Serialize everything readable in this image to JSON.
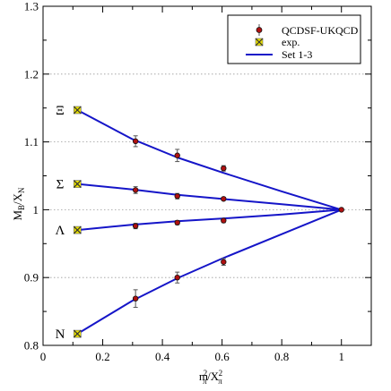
{
  "chart_data": {
    "type": "scatter",
    "xlim": [
      0,
      1.1
    ],
    "ylim": [
      0.8,
      1.3
    ],
    "x_ticks": [
      "0",
      "0.2",
      "0.4",
      "0.6",
      "0.8",
      "1"
    ],
    "y_ticks": [
      "0.8",
      "0.9",
      "1",
      "1.1",
      "1.2",
      "1.3"
    ],
    "grid": "horizontal dotted at y ticks",
    "legend_position": "top-right",
    "legend": [
      "QCDSF-UKQCD",
      "exp.",
      "Set 1-3"
    ],
    "baryon_labels": [
      {
        "text": "Ξ",
        "y": 1.147
      },
      {
        "text": "Σ",
        "y": 1.038
      },
      {
        "text": "Λ",
        "y": 0.97
      },
      {
        "text": "N",
        "y": 0.817
      }
    ],
    "series": [
      {
        "name": "QCDSF-UKQCD",
        "color": "#8b0000",
        "points": [
          {
            "x": 0.31,
            "y": 1.101,
            "err": 0.008
          },
          {
            "x": 0.45,
            "y": 1.08,
            "err": 0.009
          },
          {
            "x": 0.605,
            "y": 1.061,
            "err": 0.004
          },
          {
            "x": 0.31,
            "y": 1.029,
            "err": 0.005
          },
          {
            "x": 0.45,
            "y": 1.02,
            "err": 0.004
          },
          {
            "x": 0.605,
            "y": 1.016,
            "err": 0.002
          },
          {
            "x": 0.31,
            "y": 0.976,
            "err": 0.004
          },
          {
            "x": 0.45,
            "y": 0.981,
            "err": 0.003
          },
          {
            "x": 0.605,
            "y": 0.984,
            "err": 0.003
          },
          {
            "x": 0.31,
            "y": 0.869,
            "err": 0.013
          },
          {
            "x": 0.45,
            "y": 0.9,
            "err": 0.008
          },
          {
            "x": 0.605,
            "y": 0.923,
            "err": 0.005
          },
          {
            "x": 1.0,
            "y": 1.0,
            "err": 0
          }
        ]
      },
      {
        "name": "exp.",
        "color": "#e8e000",
        "points": [
          {
            "x": 0.115,
            "y": 1.147
          },
          {
            "x": 0.115,
            "y": 1.038
          },
          {
            "x": 0.115,
            "y": 0.97
          },
          {
            "x": 0.115,
            "y": 0.817
          }
        ]
      },
      {
        "name": "Set 1-3",
        "color": "#1515c8",
        "curves": [
          {
            "x": [
              0.115,
              0.3,
              0.45,
              0.6,
              0.8,
              1.0
            ],
            "y": [
              1.147,
              1.104,
              1.077,
              1.055,
              1.027,
              1.0
            ]
          },
          {
            "x": [
              0.115,
              0.3,
              0.45,
              0.6,
              0.8,
              1.0
            ],
            "y": [
              1.038,
              1.03,
              1.022,
              1.016,
              1.008,
              1.0
            ]
          },
          {
            "x": [
              0.115,
              0.3,
              0.45,
              0.6,
              0.8,
              1.0
            ],
            "y": [
              0.97,
              0.978,
              0.983,
              0.987,
              0.993,
              1.0
            ]
          },
          {
            "x": [
              0.115,
              0.3,
              0.45,
              0.6,
              0.8,
              1.0
            ],
            "y": [
              0.817,
              0.866,
              0.899,
              0.928,
              0.964,
              1.0
            ]
          }
        ]
      }
    ]
  }
}
